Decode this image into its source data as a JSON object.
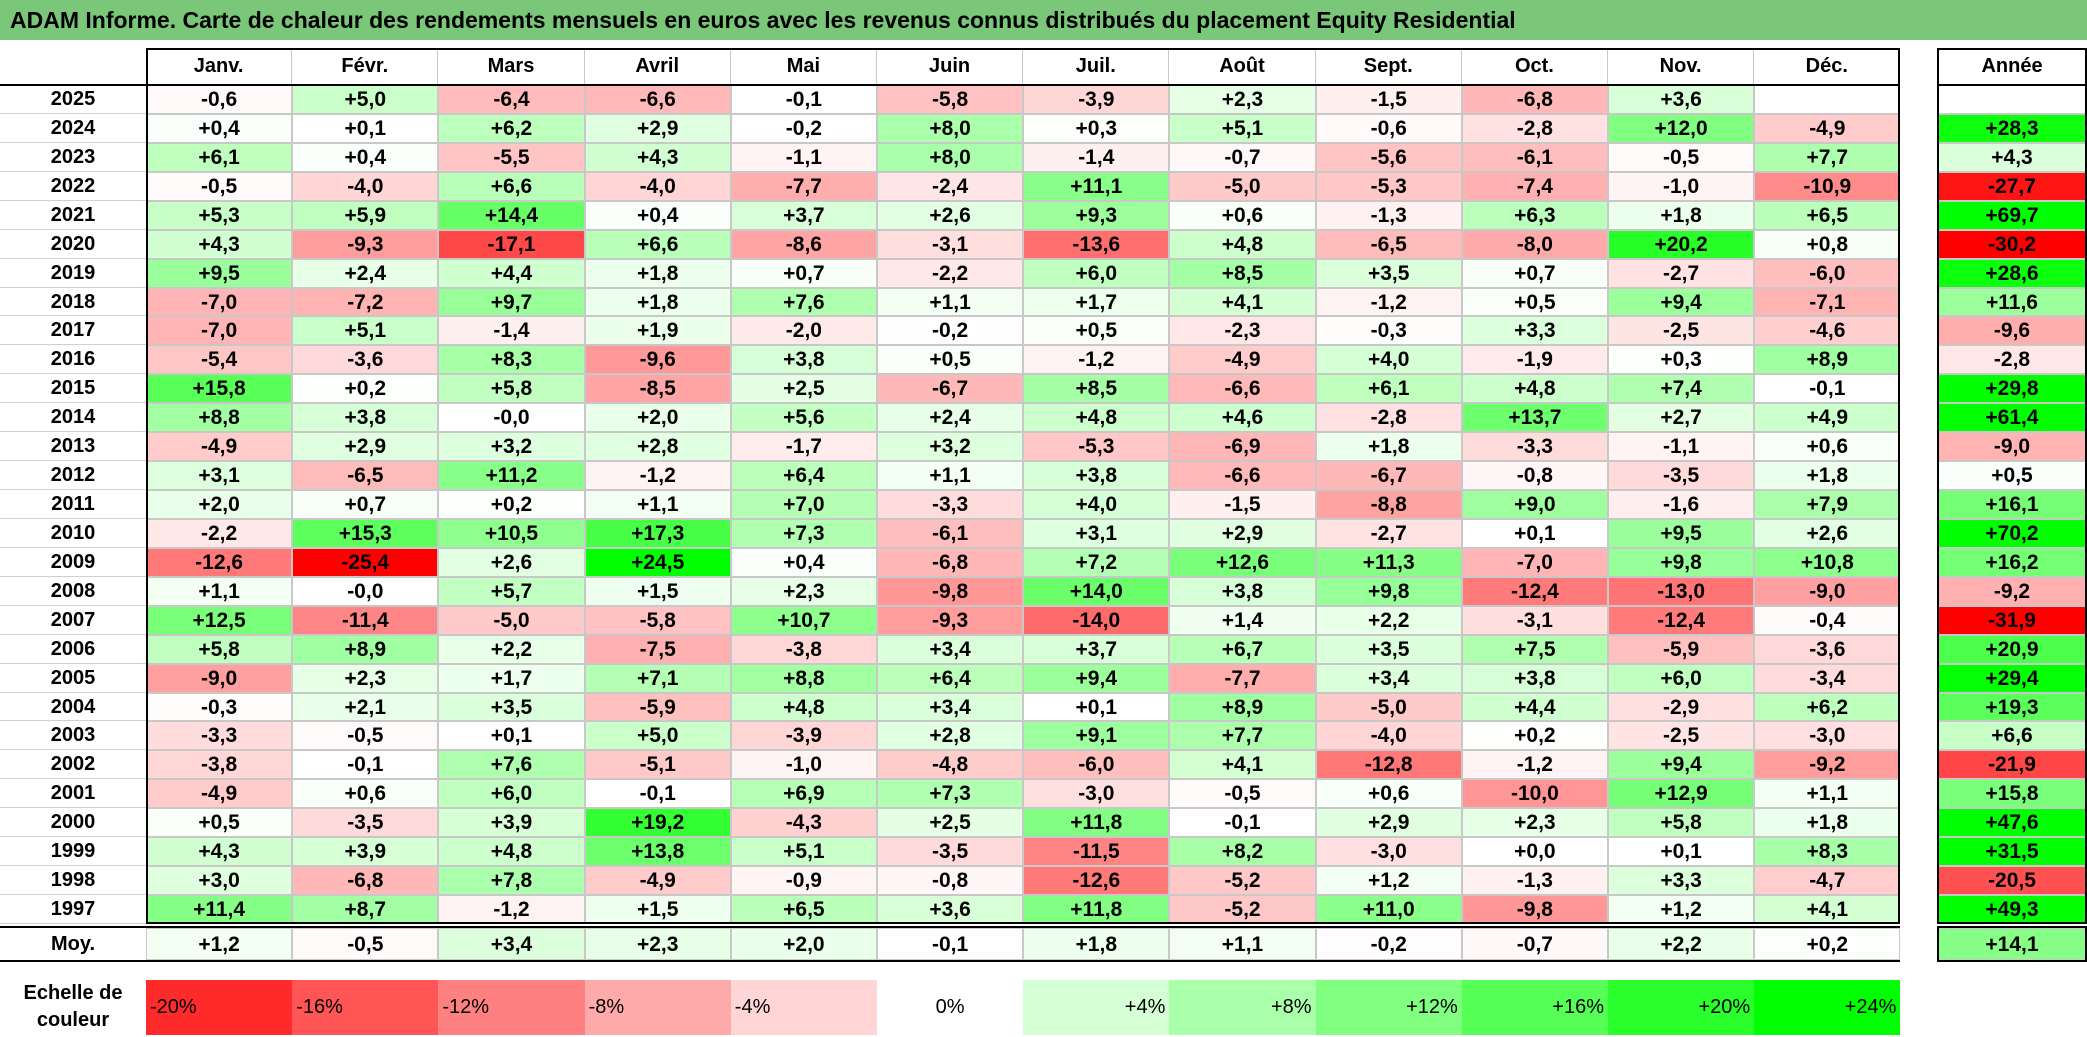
{
  "title": "ADAM Informe. Carte de chaleur des rendements mensuels en euros avec les revenus connus distribués du placement Equity Residential",
  "chart_data": {
    "type": "heatmap",
    "title": "ADAM Informe. Carte de chaleur des rendements mensuels en euros avec les revenus connus distribués du placement Equity Residential",
    "columns": [
      "Janv.",
      "Févr.",
      "Mars",
      "Avril",
      "Mai",
      "Juin",
      "Juil.",
      "Août",
      "Sept.",
      "Oct.",
      "Nov.",
      "Déc."
    ],
    "year_column_label": "Année",
    "rows": [
      {
        "year": "2025",
        "months": [
          "-0,6",
          "+5,0",
          "-6,4",
          "-6,6",
          "-0,1",
          "-5,8",
          "-3,9",
          "+2,3",
          "-1,5",
          "-6,8",
          "+3,6",
          ""
        ],
        "annual": ""
      },
      {
        "year": "2024",
        "months": [
          "+0,4",
          "+0,1",
          "+6,2",
          "+2,9",
          "-0,2",
          "+8,0",
          "+0,3",
          "+5,1",
          "-0,6",
          "-2,8",
          "+12,0",
          "-4,9"
        ],
        "annual": "+28,3"
      },
      {
        "year": "2023",
        "months": [
          "+6,1",
          "+0,4",
          "-5,5",
          "+4,3",
          "-1,1",
          "+8,0",
          "-1,4",
          "-0,7",
          "-5,6",
          "-6,1",
          "-0,5",
          "+7,7"
        ],
        "annual": "+4,3"
      },
      {
        "year": "2022",
        "months": [
          "-0,5",
          "-4,0",
          "+6,6",
          "-4,0",
          "-7,7",
          "-2,4",
          "+11,1",
          "-5,0",
          "-5,3",
          "-7,4",
          "-1,0",
          "-10,9"
        ],
        "annual": "-27,7"
      },
      {
        "year": "2021",
        "months": [
          "+5,3",
          "+5,9",
          "+14,4",
          "+0,4",
          "+3,7",
          "+2,6",
          "+9,3",
          "+0,6",
          "-1,3",
          "+6,3",
          "+1,8",
          "+6,5"
        ],
        "annual": "+69,7"
      },
      {
        "year": "2020",
        "months": [
          "+4,3",
          "-9,3",
          "-17,1",
          "+6,6",
          "-8,6",
          "-3,1",
          "-13,6",
          "+4,8",
          "-6,5",
          "-8,0",
          "+20,2",
          "+0,8"
        ],
        "annual": "-30,2"
      },
      {
        "year": "2019",
        "months": [
          "+9,5",
          "+2,4",
          "+4,4",
          "+1,8",
          "+0,7",
          "-2,2",
          "+6,0",
          "+8,5",
          "+3,5",
          "+0,7",
          "-2,7",
          "-6,0"
        ],
        "annual": "+28,6"
      },
      {
        "year": "2018",
        "months": [
          "-7,0",
          "-7,2",
          "+9,7",
          "+1,8",
          "+7,6",
          "+1,1",
          "+1,7",
          "+4,1",
          "-1,2",
          "+0,5",
          "+9,4",
          "-7,1"
        ],
        "annual": "+11,6"
      },
      {
        "year": "2017",
        "months": [
          "-7,0",
          "+5,1",
          "-1,4",
          "+1,9",
          "-2,0",
          "-0,2",
          "+0,5",
          "-2,3",
          "-0,3",
          "+3,3",
          "-2,5",
          "-4,6"
        ],
        "annual": "-9,6"
      },
      {
        "year": "2016",
        "months": [
          "-5,4",
          "-3,6",
          "+8,3",
          "-9,6",
          "+3,8",
          "+0,5",
          "-1,2",
          "-4,9",
          "+4,0",
          "-1,9",
          "+0,3",
          "+8,9"
        ],
        "annual": "-2,8"
      },
      {
        "year": "2015",
        "months": [
          "+15,8",
          "+0,2",
          "+5,8",
          "-8,5",
          "+2,5",
          "-6,7",
          "+8,5",
          "-6,6",
          "+6,1",
          "+4,8",
          "+7,4",
          "-0,1"
        ],
        "annual": "+29,8"
      },
      {
        "year": "2014",
        "months": [
          "+8,8",
          "+3,8",
          "-0,0",
          "+2,0",
          "+5,6",
          "+2,4",
          "+4,8",
          "+4,6",
          "-2,8",
          "+13,7",
          "+2,7",
          "+4,9"
        ],
        "annual": "+61,4"
      },
      {
        "year": "2013",
        "months": [
          "-4,9",
          "+2,9",
          "+3,2",
          "+2,8",
          "-1,7",
          "+3,2",
          "-5,3",
          "-6,9",
          "+1,8",
          "-3,3",
          "-1,1",
          "+0,6"
        ],
        "annual": "-9,0"
      },
      {
        "year": "2012",
        "months": [
          "+3,1",
          "-6,5",
          "+11,2",
          "-1,2",
          "+6,4",
          "+1,1",
          "+3,8",
          "-6,6",
          "-6,7",
          "-0,8",
          "-3,5",
          "+1,8"
        ],
        "annual": "+0,5"
      },
      {
        "year": "2011",
        "months": [
          "+2,0",
          "+0,7",
          "+0,2",
          "+1,1",
          "+7,0",
          "-3,3",
          "+4,0",
          "-1,5",
          "-8,8",
          "+9,0",
          "-1,6",
          "+7,9"
        ],
        "annual": "+16,1"
      },
      {
        "year": "2010",
        "months": [
          "-2,2",
          "+15,3",
          "+10,5",
          "+17,3",
          "+7,3",
          "-6,1",
          "+3,1",
          "+2,9",
          "-2,7",
          "+0,1",
          "+9,5",
          "+2,6"
        ],
        "annual": "+70,2"
      },
      {
        "year": "2009",
        "months": [
          "-12,6",
          "-25,4",
          "+2,6",
          "+24,5",
          "+0,4",
          "-6,8",
          "+7,2",
          "+12,6",
          "+11,3",
          "-7,0",
          "+9,8",
          "+10,8"
        ],
        "annual": "+16,2"
      },
      {
        "year": "2008",
        "months": [
          "+1,1",
          "-0,0",
          "+5,7",
          "+1,5",
          "+2,3",
          "-9,8",
          "+14,0",
          "+3,8",
          "+9,8",
          "-12,4",
          "-13,0",
          "-9,0"
        ],
        "annual": "-9,2"
      },
      {
        "year": "2007",
        "months": [
          "+12,5",
          "-11,4",
          "-5,0",
          "-5,8",
          "+10,7",
          "-9,3",
          "-14,0",
          "+1,4",
          "+2,2",
          "-3,1",
          "-12,4",
          "-0,4"
        ],
        "annual": "-31,9"
      },
      {
        "year": "2006",
        "months": [
          "+5,8",
          "+8,9",
          "+2,2",
          "-7,5",
          "-3,8",
          "+3,4",
          "+3,7",
          "+6,7",
          "+3,5",
          "+7,5",
          "-5,9",
          "-3,6"
        ],
        "annual": "+20,9"
      },
      {
        "year": "2005",
        "months": [
          "-9,0",
          "+2,3",
          "+1,7",
          "+7,1",
          "+8,8",
          "+6,4",
          "+9,4",
          "-7,7",
          "+3,4",
          "+3,8",
          "+6,0",
          "-3,4"
        ],
        "annual": "+29,4"
      },
      {
        "year": "2004",
        "months": [
          "-0,3",
          "+2,1",
          "+3,5",
          "-5,9",
          "+4,8",
          "+3,4",
          "+0,1",
          "+8,9",
          "-5,0",
          "+4,4",
          "-2,9",
          "+6,2"
        ],
        "annual": "+19,3"
      },
      {
        "year": "2003",
        "months": [
          "-3,3",
          "-0,5",
          "+0,1",
          "+5,0",
          "-3,9",
          "+2,8",
          "+9,1",
          "+7,7",
          "-4,0",
          "+0,2",
          "-2,5",
          "-3,0"
        ],
        "annual": "+6,6"
      },
      {
        "year": "2002",
        "months": [
          "-3,8",
          "-0,1",
          "+7,6",
          "-5,1",
          "-1,0",
          "-4,8",
          "-6,0",
          "+4,1",
          "-12,8",
          "-1,2",
          "+9,4",
          "-9,2"
        ],
        "annual": "-21,9"
      },
      {
        "year": "2001",
        "months": [
          "-4,9",
          "+0,6",
          "+6,0",
          "-0,1",
          "+6,9",
          "+7,3",
          "-3,0",
          "-0,5",
          "+0,6",
          "-10,0",
          "+12,9",
          "+1,1"
        ],
        "annual": "+15,8"
      },
      {
        "year": "2000",
        "months": [
          "+0,5",
          "-3,5",
          "+3,9",
          "+19,2",
          "-4,3",
          "+2,5",
          "+11,8",
          "-0,1",
          "+2,9",
          "+2,3",
          "+5,8",
          "+1,8"
        ],
        "annual": "+47,6"
      },
      {
        "year": "1999",
        "months": [
          "+4,3",
          "+3,9",
          "+4,8",
          "+13,8",
          "+5,1",
          "-3,5",
          "-11,5",
          "+8,2",
          "-3,0",
          "+0,0",
          "+0,1",
          "+8,3"
        ],
        "annual": "+31,5"
      },
      {
        "year": "1998",
        "months": [
          "+3,0",
          "-6,8",
          "+7,8",
          "-4,9",
          "-0,9",
          "-0,8",
          "-12,6",
          "-5,2",
          "+1,2",
          "-1,3",
          "+3,3",
          "-4,7"
        ],
        "annual": "-20,5"
      },
      {
        "year": "1997",
        "months": [
          "+11,4",
          "+8,7",
          "-1,2",
          "+1,5",
          "+6,5",
          "+3,6",
          "+11,8",
          "-5,2",
          "+11,0",
          "-9,8",
          "+1,2",
          "+4,1"
        ],
        "annual": "+49,3"
      }
    ],
    "average": {
      "label": "Moy.",
      "months": [
        "+1,2",
        "-0,5",
        "+3,4",
        "+2,3",
        "+2,0",
        "-0,1",
        "+1,8",
        "+1,1",
        "-0,2",
        "-0,7",
        "+2,2",
        "+0,2"
      ],
      "annual": "+14,1"
    },
    "legend": {
      "label_line1": "Echelle de",
      "label_line2": "couleur",
      "items": [
        {
          "text": "-20%",
          "value": -20
        },
        {
          "text": "-16%",
          "value": -16
        },
        {
          "text": "-12%",
          "value": -12
        },
        {
          "text": "-8%",
          "value": -8
        },
        {
          "text": "-4%",
          "value": -4
        },
        {
          "text": "0%",
          "value": 0
        },
        {
          "text": "+4%",
          "value": 4
        },
        {
          "text": "+8%",
          "value": 8
        },
        {
          "text": "+12%",
          "value": 12
        },
        {
          "text": "+16%",
          "value": 16
        },
        {
          "text": "+20%",
          "value": 20
        },
        {
          "text": "+24%",
          "value": 24
        }
      ]
    },
    "colors": {
      "negative": "#ff0000",
      "neutral": "#ffffff",
      "positive": "#00ff00",
      "title_bar": "#7ac77a"
    },
    "color_scale": {
      "monthly_saturation": 24,
      "annual_saturation": 30
    }
  }
}
